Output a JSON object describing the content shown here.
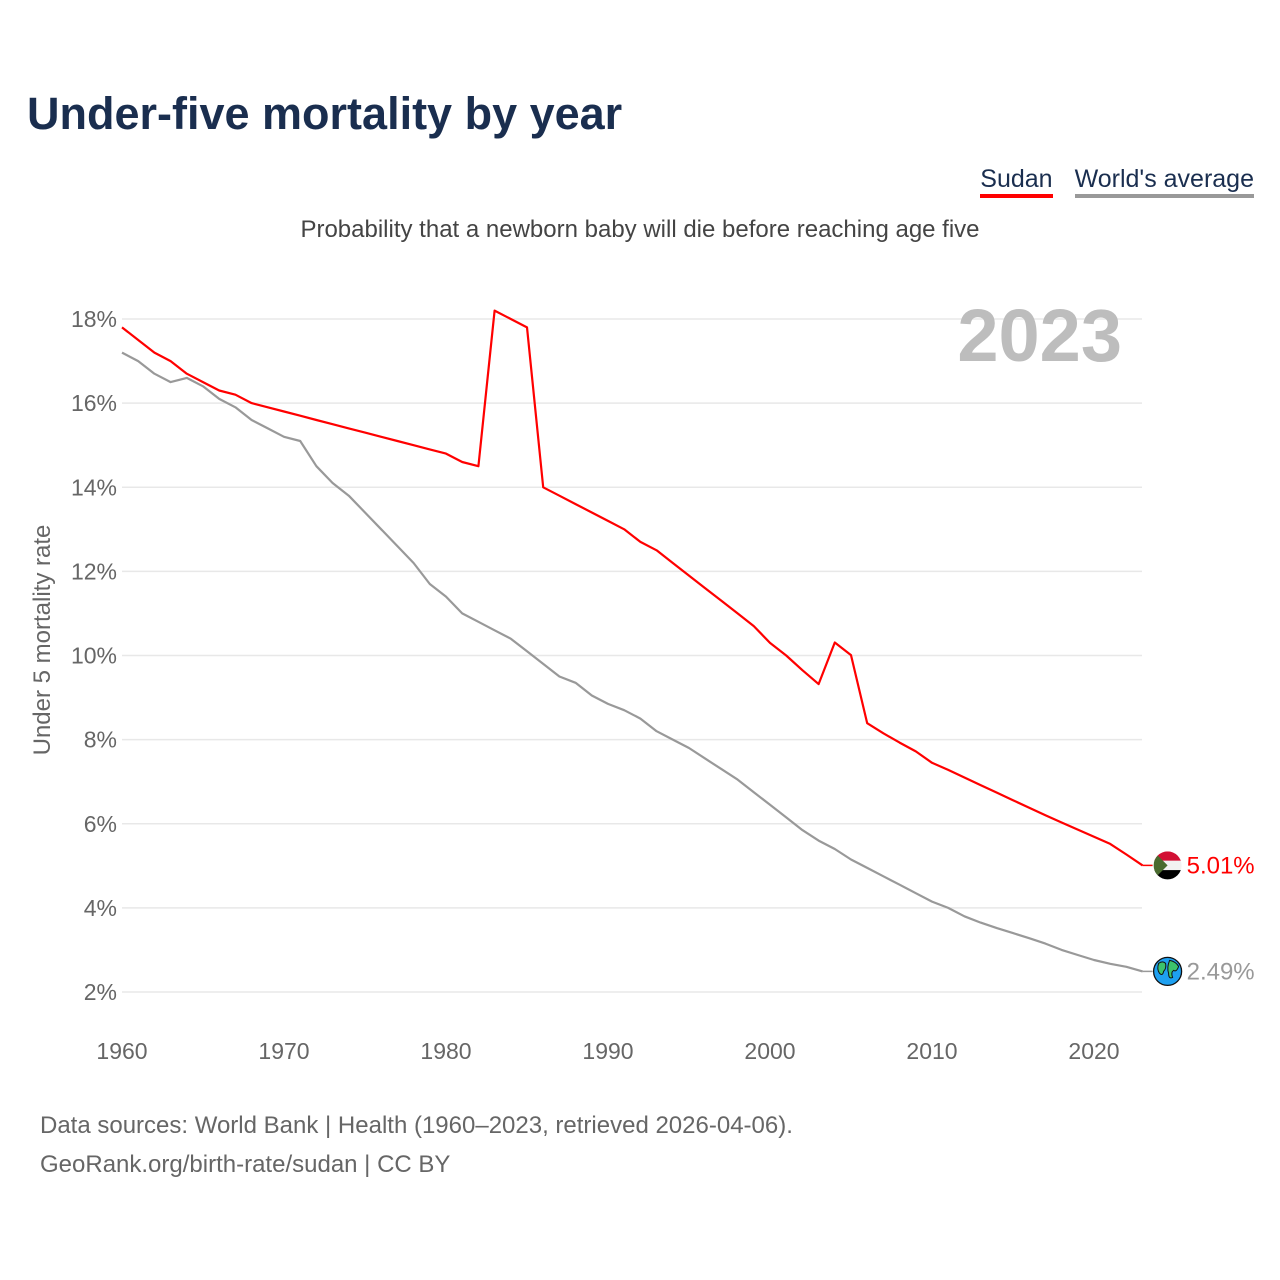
{
  "title": "Under-five mortality by year",
  "legend": [
    {
      "label": "Sudan",
      "color": "#ff0000"
    },
    {
      "label": "World's average",
      "color": "#999999"
    }
  ],
  "subtitle": "Probability that a newborn baby will die before reaching age five",
  "year_label": "2023",
  "footer": {
    "line1": "Data sources: World Bank | Health (1960–2023, retrieved 2026-04-06).",
    "line2": "GeoRank.org/birth-rate/sudan | CC BY"
  },
  "chart_data": {
    "type": "line",
    "title": "Under-five mortality by year",
    "xlabel": "",
    "ylabel": "Under 5 mortality rate",
    "xlim": [
      1960,
      2023
    ],
    "ylim": [
      2,
      18
    ],
    "grid": true,
    "legend_position": "top-right",
    "x_ticks": [
      1960,
      1970,
      1980,
      1990,
      2000,
      2010,
      2020
    ],
    "x_tick_labels": [
      "1960",
      "1970",
      "1980",
      "1990",
      "2000",
      "2010",
      "2020"
    ],
    "y_ticks": [
      2,
      4,
      6,
      8,
      10,
      12,
      14,
      16,
      18
    ],
    "y_tick_labels": [
      "2%",
      "4%",
      "6%",
      "8%",
      "10%",
      "12%",
      "14%",
      "16%",
      "18%"
    ],
    "x_start": 1960,
    "series": [
      {
        "name": "Sudan",
        "color": "#ff0000",
        "end_label": "5.01%",
        "marker_icon": "sudan-flag-icon",
        "values": [
          17.8,
          17.5,
          17.2,
          17.0,
          16.7,
          16.5,
          16.3,
          16.2,
          16.0,
          15.9,
          15.8,
          15.7,
          15.6,
          15.5,
          15.4,
          15.3,
          15.2,
          15.1,
          15.0,
          14.9,
          14.8,
          14.6,
          14.5,
          18.2,
          18.0,
          17.8,
          14.0,
          13.8,
          13.6,
          13.4,
          13.2,
          13.0,
          12.7,
          12.5,
          12.2,
          11.9,
          11.6,
          11.3,
          11.0,
          10.7,
          10.3,
          10.0,
          9.65,
          9.32,
          10.31,
          10.01,
          8.39,
          8.15,
          7.93,
          7.72,
          7.45,
          7.28,
          7.1,
          6.92,
          6.74,
          6.56,
          6.38,
          6.2,
          6.03,
          5.86,
          5.69,
          5.52,
          5.27,
          5.01
        ]
      },
      {
        "name": "World's average",
        "color": "#999999",
        "end_label": "2.49%",
        "marker_icon": "globe-icon",
        "values": [
          17.2,
          17.0,
          16.7,
          16.5,
          16.6,
          16.4,
          16.1,
          15.9,
          15.6,
          15.4,
          15.2,
          15.1,
          14.5,
          14.1,
          13.8,
          13.4,
          13.0,
          12.6,
          12.2,
          11.7,
          11.4,
          11.0,
          10.8,
          10.6,
          10.4,
          10.1,
          9.8,
          9.5,
          9.35,
          9.05,
          8.85,
          8.7,
          8.5,
          8.2,
          8.0,
          7.8,
          7.55,
          7.3,
          7.05,
          6.75,
          6.45,
          6.15,
          5.85,
          5.6,
          5.4,
          5.15,
          4.95,
          4.75,
          4.55,
          4.35,
          4.15,
          4.0,
          3.8,
          3.65,
          3.52,
          3.4,
          3.28,
          3.15,
          3.0,
          2.88,
          2.76,
          2.67,
          2.6,
          2.49
        ]
      }
    ]
  }
}
